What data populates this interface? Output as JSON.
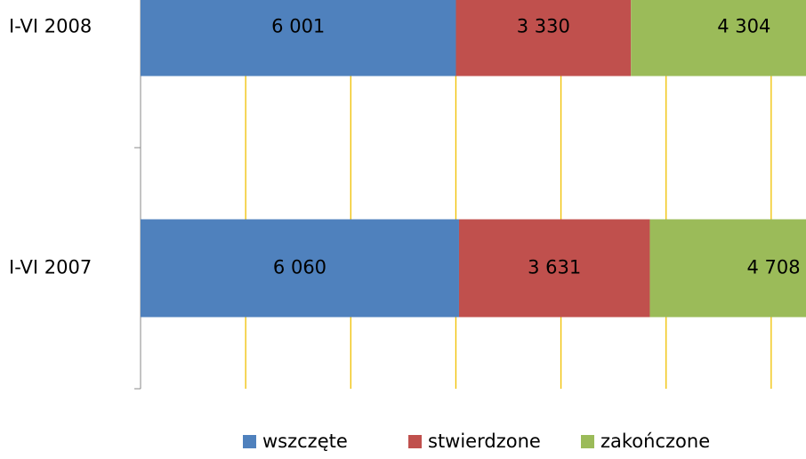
{
  "chart_data": {
    "type": "stacked_barh",
    "categories": [
      "I-VI 2008",
      "I-VI 2007"
    ],
    "series": [
      {
        "name": "wszczęte",
        "color": "#4f81bd",
        "values": [
          6001,
          6060
        ],
        "value_labels": [
          "6 001",
          "6 060"
        ]
      },
      {
        "name": "stwierdzone",
        "color": "#c0504d",
        "values": [
          3330,
          3631
        ],
        "value_labels": [
          "3 330",
          "3 631"
        ]
      },
      {
        "name": "zakończone",
        "color": "#9bbb59",
        "values": [
          4304,
          4708
        ],
        "value_labels": [
          "4 304",
          "4 708"
        ]
      }
    ],
    "xlim": [
      0,
      14000
    ],
    "xticks": [
      0,
      2000,
      4000,
      6000,
      8000,
      10000,
      12000
    ],
    "grid": true,
    "grid_color": "#f0c000",
    "legend": "bottom"
  }
}
